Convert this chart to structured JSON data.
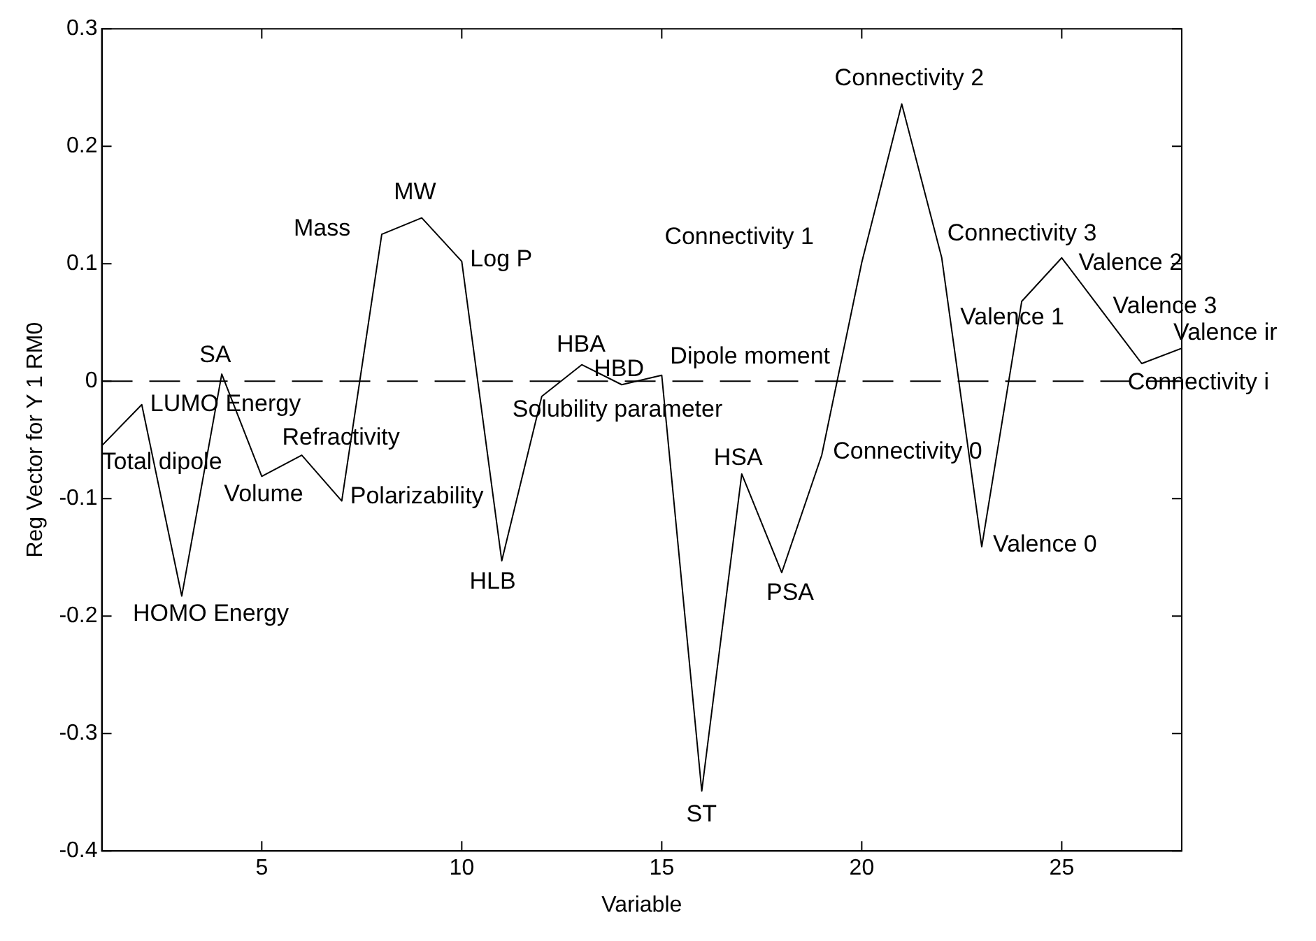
{
  "chart_data": {
    "type": "line",
    "xlabel": "Variable",
    "ylabel": "Reg Vector for Y 1 RM0",
    "x": [
      1,
      2,
      3,
      4,
      5,
      6,
      7,
      8,
      9,
      10,
      11,
      12,
      13,
      14,
      15,
      16,
      17,
      18,
      19,
      20,
      21,
      22,
      23,
      24,
      25,
      26,
      27,
      28
    ],
    "series": [
      {
        "color": "#000000",
        "values": [
          -0.055,
          -0.02,
          -0.183,
          0.006,
          -0.081,
          -0.063,
          -0.102,
          0.125,
          0.139,
          0.102,
          -0.153,
          -0.013,
          0.014,
          -0.003,
          0.005,
          -0.349,
          -0.079,
          -0.163,
          -0.063,
          0.101,
          0.236,
          0.105,
          -0.141,
          0.068,
          0.105,
          0.06,
          0.015,
          0.028
        ]
      }
    ],
    "xlim": [
      1,
      28
    ],
    "xticks": [
      5,
      10,
      15,
      20,
      25
    ],
    "ylim": [
      -0.4,
      0.3
    ],
    "yticks": [
      -0.4,
      -0.3,
      -0.2,
      -0.1,
      0,
      0.1,
      0.2,
      0.3
    ],
    "grid": false,
    "legend": false,
    "marker": "none",
    "line_style": "solid",
    "ref_lines": [
      {
        "axis": "y",
        "value": 0,
        "color": "#000000",
        "line_style": "dashed"
      }
    ],
    "annotations": [
      {
        "text": "Total dipole",
        "x": 1,
        "y": -0.055
      },
      {
        "text": "LUMO Energy",
        "x": 2,
        "y": -0.02
      },
      {
        "text": "HOMO Energy",
        "x": 3,
        "y": -0.183
      },
      {
        "text": "SA",
        "x": 4,
        "y": 0.006
      },
      {
        "text": "Volume",
        "x": 5,
        "y": -0.081
      },
      {
        "text": "Refractivity",
        "x": 6,
        "y": -0.063
      },
      {
        "text": "Polarizability",
        "x": 7,
        "y": -0.102
      },
      {
        "text": "Mass",
        "x": 8,
        "y": 0.125
      },
      {
        "text": "MW",
        "x": 9,
        "y": 0.139
      },
      {
        "text": "Log P",
        "x": 10,
        "y": 0.102
      },
      {
        "text": "HLB",
        "x": 11,
        "y": -0.153
      },
      {
        "text": "HBA",
        "x": 13,
        "y": 0.014
      },
      {
        "text": "HBD",
        "x": 14,
        "y": -0.003
      },
      {
        "text": "Solubility parameter",
        "x": 12,
        "y": -0.013
      },
      {
        "text": "Dipole moment",
        "x": 15,
        "y": 0.005
      },
      {
        "text": "ST",
        "x": 16,
        "y": -0.349
      },
      {
        "text": "HSA",
        "x": 17,
        "y": -0.079
      },
      {
        "text": "PSA",
        "x": 18,
        "y": -0.163
      },
      {
        "text": "Connectivity 1",
        "x": 20,
        "y": 0.101
      },
      {
        "text": "Connectivity 0",
        "x": 19,
        "y": -0.063
      },
      {
        "text": "Connectivity 2",
        "x": 21,
        "y": 0.236
      },
      {
        "text": "Connectivity 3",
        "x": 22,
        "y": 0.105
      },
      {
        "text": "Valence 0",
        "x": 23,
        "y": -0.141
      },
      {
        "text": "Valence 1",
        "x": 24,
        "y": 0.068
      },
      {
        "text": "Valence 2",
        "x": 25,
        "y": 0.105
      },
      {
        "text": "Valence 3",
        "x": 26,
        "y": 0.06
      },
      {
        "text": "Valence ir",
        "x": 28,
        "y": 0.028
      },
      {
        "text": "Connectivity i",
        "x": 27,
        "y": 0.015
      }
    ]
  }
}
